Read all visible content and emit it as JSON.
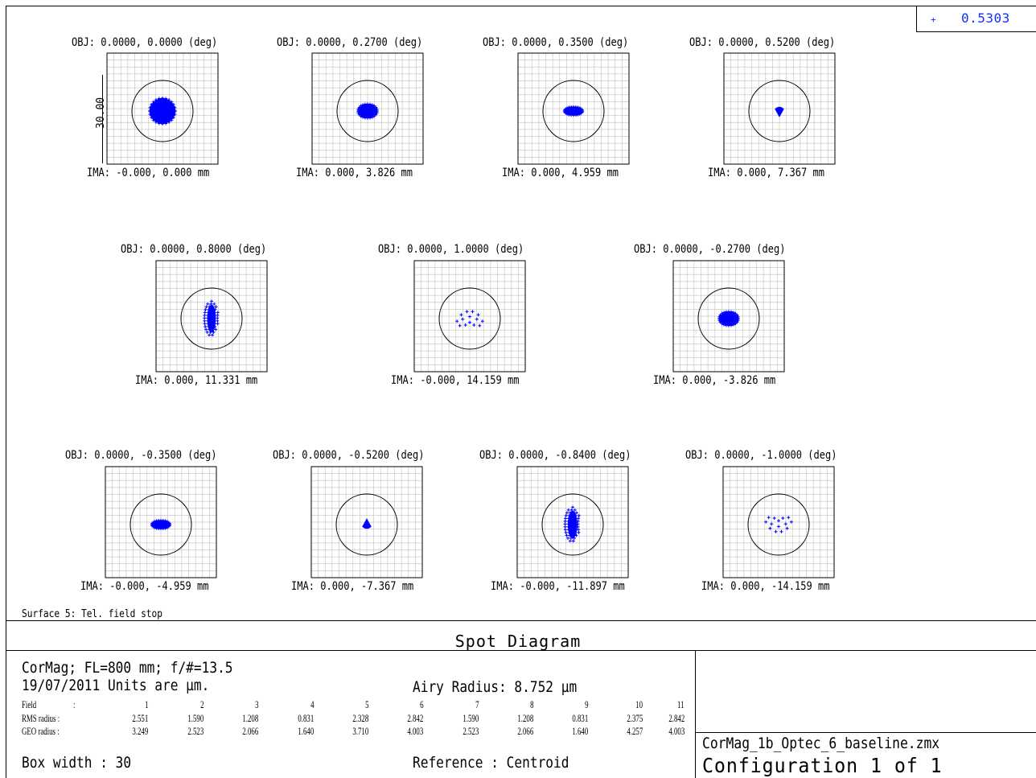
{
  "wavelength": {
    "marker": "+",
    "value": "0.5303",
    "color": "#1030ff"
  },
  "chart_data": {
    "type": "scatter",
    "title": "Spot Diagram",
    "scale_bar_label": "30.00",
    "spot_color": "#0000ff",
    "fields": [
      {
        "obj": "OBJ: 0.0000, 0.0000 (deg)",
        "ima": "IMA: -0.000, 0.000 mm",
        "shape": "disk",
        "rx": 1.0,
        "ry": 1.0
      },
      {
        "obj": "OBJ: 0.0000, 0.2700 (deg)",
        "ima": "IMA: 0.000, 3.826 mm",
        "shape": "disk",
        "rx": 0.75,
        "ry": 0.55
      },
      {
        "obj": "OBJ: 0.0000, 0.3500 (deg)",
        "ima": "IMA: 0.000, 4.959 mm",
        "shape": "disk",
        "rx": 0.7,
        "ry": 0.33
      },
      {
        "obj": "OBJ: 0.0000, 0.5200 (deg)",
        "ima": "IMA: 0.000, 7.367 mm",
        "shape": "drop",
        "rx": 0.3,
        "ry": 0.55
      },
      {
        "obj": "OBJ: 0.0000, 0.8000 (deg)",
        "ima": "IMA: 0.000, 11.331 mm",
        "shape": "cluster",
        "rx": 0.55,
        "ry": 1.35
      },
      {
        "obj": "OBJ: 0.0000, 1.0000 (deg)",
        "ima": "IMA: -0.000, 14.159 mm",
        "shape": "arc",
        "rx": 1.1,
        "ry": 1.0
      },
      {
        "obj": "OBJ: 0.0000, -0.2700 (deg)",
        "ima": "IMA: 0.000, -3.826 mm",
        "shape": "disk",
        "rx": 0.75,
        "ry": 0.55
      },
      {
        "obj": "OBJ: 0.0000, -0.3500 (deg)",
        "ima": "IMA: -0.000, -4.959 mm",
        "shape": "disk",
        "rx": 0.7,
        "ry": 0.33
      },
      {
        "obj": "OBJ: 0.0000, -0.5200 (deg)",
        "ima": "IMA: 0.000, -7.367 mm",
        "shape": "drop_up",
        "rx": 0.3,
        "ry": 0.55
      },
      {
        "obj": "OBJ: 0.0000, -0.8400 (deg)",
        "ima": "IMA: -0.000, -11.897 mm",
        "shape": "cluster",
        "rx": 0.6,
        "ry": 1.35
      },
      {
        "obj": "OBJ: 0.0000, -1.0000 (deg)",
        "ima": "IMA: 0.000, -14.159 mm",
        "shape": "arc_down",
        "rx": 1.1,
        "ry": 1.0
      }
    ],
    "table": {
      "field_label": "Field",
      "field_sep": ":",
      "field_numbers": [
        "1",
        "2",
        "3",
        "4",
        "5",
        "6",
        "7",
        "8",
        "9",
        "10",
        "11"
      ],
      "rms_label": "RMS radius :",
      "rms": [
        "2.551",
        "1.590",
        "1.208",
        "0.831",
        "2.328",
        "2.842",
        "1.590",
        "1.208",
        "0.831",
        "2.375",
        "2.842"
      ],
      "geo_label": "GEO radius :",
      "geo": [
        "3.249",
        "2.523",
        "2.066",
        "1.640",
        "3.710",
        "4.003",
        "2.523",
        "2.066",
        "1.640",
        "4.257",
        "4.003"
      ]
    }
  },
  "surface_note": "Surface 5: Tel. field stop",
  "footer": {
    "line1": "CorMag; FL=800 mm; f/#=13.5",
    "line2": "19/07/2011  Units are µm.",
    "airy": "Airy Radius: 8.752 µm",
    "box_width": "Box width  : 30",
    "reference": "Reference  : Centroid",
    "filename": "CorMag_1b_Optec_6_baseline.zmx",
    "configuration": "Configuration 1 of 1"
  }
}
